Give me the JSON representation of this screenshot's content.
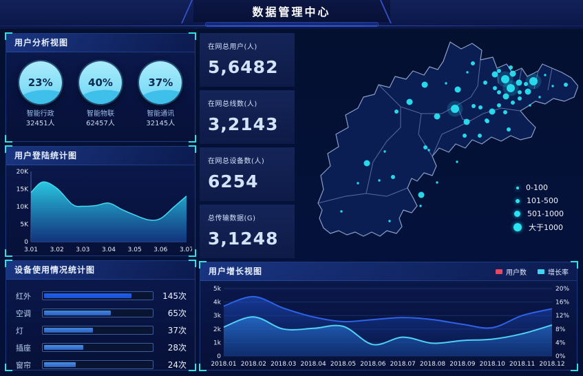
{
  "header": {
    "title": "数据管理中心"
  },
  "panels": {
    "user_analysis": {
      "title": "用户分析视图"
    },
    "login_stats": {
      "title": "用户登陆统计图"
    },
    "device_usage": {
      "title": "设备使用情况统计图"
    },
    "user_growth": {
      "title": "用户增长视图"
    }
  },
  "stats": [
    {
      "label": "在网总用户(人)",
      "value": "5,6482"
    },
    {
      "label": "在网总线数(人)",
      "value": "3,2143"
    },
    {
      "label": "在网总设备数(人)",
      "value": "6254"
    },
    {
      "label": "总传输数据(G)",
      "value": "3,1248"
    }
  ],
  "colors": {
    "accent_cyan": "#2fe4e4",
    "dot_cyan": "#29e2f2",
    "bar_primary": "#1f5ef0",
    "bar_secondary": "#4387d9",
    "map_fill": "#0c1f55",
    "map_border": "#8fa6cc"
  },
  "chart_data": [
    {
      "id": "login",
      "type": "area",
      "title": "用户登陆统计图",
      "x_labels": [
        "3.01",
        "3.02",
        "3.03",
        "3.04",
        "3.05",
        "3.06",
        "3.07"
      ],
      "x": [
        0,
        0.45,
        1,
        1.6,
        2,
        2.5,
        3,
        3.5,
        4,
        4.55,
        5,
        5.5,
        6
      ],
      "values": [
        14,
        17,
        15.2,
        10.6,
        10.1,
        10.3,
        11,
        9.2,
        7.6,
        6.2,
        6.6,
        9.8,
        13
      ],
      "ymax": 20,
      "y_ticks": [
        "0",
        "5K",
        "10K",
        "15K",
        "20K"
      ],
      "line_color": "#45d8f0",
      "area_top": "#2bd0e8",
      "area_bottom": "#123a88",
      "grid": false
    },
    {
      "id": "growth",
      "type": "area",
      "title": "用户增长视图",
      "categories": [
        "2018.01",
        "2018.02",
        "2018.03",
        "2018.04",
        "2018.05",
        "2018.06",
        "2018.07",
        "2018.08",
        "2018.09",
        "2018.10",
        "2018.11",
        "2018.12"
      ],
      "series": [
        {
          "name": "用户数",
          "legend_color": "#e8495f",
          "line_color": "#2d63e8",
          "axis": "left",
          "values": [
            3700,
            4400,
            3550,
            2900,
            2550,
            2700,
            2850,
            2700,
            2350,
            2100,
            3000,
            3500
          ]
        },
        {
          "name": "增长率",
          "legend_color": "#3fd4f2",
          "line_color": "#4fd2f5",
          "axis": "right",
          "values_pct": [
            8.6,
            11.6,
            8.0,
            8.2,
            8.8,
            3.4,
            5.6,
            3.8,
            4.6,
            5.0,
            6.6,
            9.2
          ]
        }
      ],
      "ylim_left": [
        0,
        5000
      ],
      "left_ticks": [
        "0",
        "1k",
        "2k",
        "3k",
        "4k",
        "5k"
      ],
      "ylim_right": [
        0,
        20
      ],
      "right_ticks": [
        "0%",
        "4%",
        "8%",
        "12%",
        "16%",
        "20%"
      ],
      "grid": true,
      "legend_position": "top-right"
    },
    {
      "id": "device",
      "type": "bar",
      "title": "设备使用情况统计图",
      "rows": [
        {
          "label": "红外",
          "value": 145,
          "value_label": "145次",
          "pct": 82,
          "color": "#1f5ef0"
        },
        {
          "label": "空调",
          "value": 65,
          "value_label": "65次",
          "pct": 63,
          "color": "#4387d9"
        },
        {
          "label": "灯",
          "value": 37,
          "value_label": "37次",
          "pct": 47,
          "color": "#4387d9"
        },
        {
          "label": "插座",
          "value": 28,
          "value_label": "28次",
          "pct": 38,
          "color": "#4a8fdd"
        },
        {
          "label": "窗帘",
          "value": 24,
          "value_label": "24次",
          "pct": 31,
          "color": "#4a8fdd"
        }
      ]
    },
    {
      "id": "gauges",
      "type": "gauge",
      "items": [
        {
          "percent": 23,
          "percent_label": "23%",
          "label": "智能行政",
          "count": "32451人"
        },
        {
          "percent": 40,
          "percent_label": "40%",
          "label": "智能物联",
          "count": "62457人"
        },
        {
          "percent": 37,
          "percent_label": "37%",
          "label": "智能通讯",
          "count": "32145人"
        }
      ]
    },
    {
      "id": "map_scatter",
      "type": "scatter",
      "legend": [
        {
          "label": "0-100"
        },
        {
          "label": "101-500"
        },
        {
          "label": "501-1000"
        },
        {
          "label": "大于1000"
        }
      ],
      "points": [
        [
          302,
          70,
          6
        ],
        [
          310,
          83,
          6
        ],
        [
          343,
          73,
          6
        ],
        [
          229,
          113,
          6
        ],
        [
          287,
          63,
          4.5
        ],
        [
          322,
          75,
          4.5
        ],
        [
          335,
          88,
          4.5
        ],
        [
          313,
          62,
          4.5
        ],
        [
          283,
          117,
          4.5
        ],
        [
          303,
          95,
          4.5
        ],
        [
          185,
          78,
          4.5
        ],
        [
          233,
          85,
          4.5
        ],
        [
          163,
          103,
          4.5
        ],
        [
          203,
          124,
          4.5
        ],
        [
          101,
          192,
          4.5
        ],
        [
          180,
          238,
          4.5
        ],
        [
          246,
          132,
          4.5
        ],
        [
          255,
          47,
          3
        ],
        [
          273,
          75,
          3
        ],
        [
          293,
          58,
          3
        ],
        [
          310,
          53,
          3
        ],
        [
          323,
          89,
          3
        ],
        [
          332,
          77,
          3
        ],
        [
          287,
          83,
          3
        ],
        [
          293,
          89,
          3
        ],
        [
          313,
          104,
          3
        ],
        [
          323,
          98,
          3
        ],
        [
          293,
          108,
          3
        ],
        [
          302,
          118,
          3
        ],
        [
          266,
          111,
          3
        ],
        [
          256,
          109,
          3
        ],
        [
          275,
          130,
          3
        ],
        [
          307,
          143,
          3
        ],
        [
          265,
          152,
          3
        ],
        [
          243,
          152,
          3
        ],
        [
          186,
          169,
          3
        ],
        [
          144,
          117,
          3
        ],
        [
          139,
          212,
          3
        ],
        [
          276,
          131,
          3
        ],
        [
          390,
          78,
          3
        ],
        [
          216,
          76,
          1.7
        ],
        [
          127,
          175,
          1.7
        ],
        [
          119,
          217,
          1.7
        ],
        [
          88,
          221,
          1.7
        ],
        [
          232,
          190,
          1.7
        ],
        [
          203,
          220,
          1.7
        ],
        [
          64,
          262,
          1.7
        ],
        [
          134,
          276,
          1.7
        ],
        [
          191,
          173,
          1.7
        ],
        [
          247,
          60,
          1.7
        ],
        [
          338,
          108,
          1.7
        ],
        [
          352,
          96,
          1.7
        ],
        [
          360,
          64,
          1.7
        ],
        [
          371,
          80,
          1.7
        ],
        [
          179,
          254,
          1.7
        ]
      ]
    }
  ]
}
